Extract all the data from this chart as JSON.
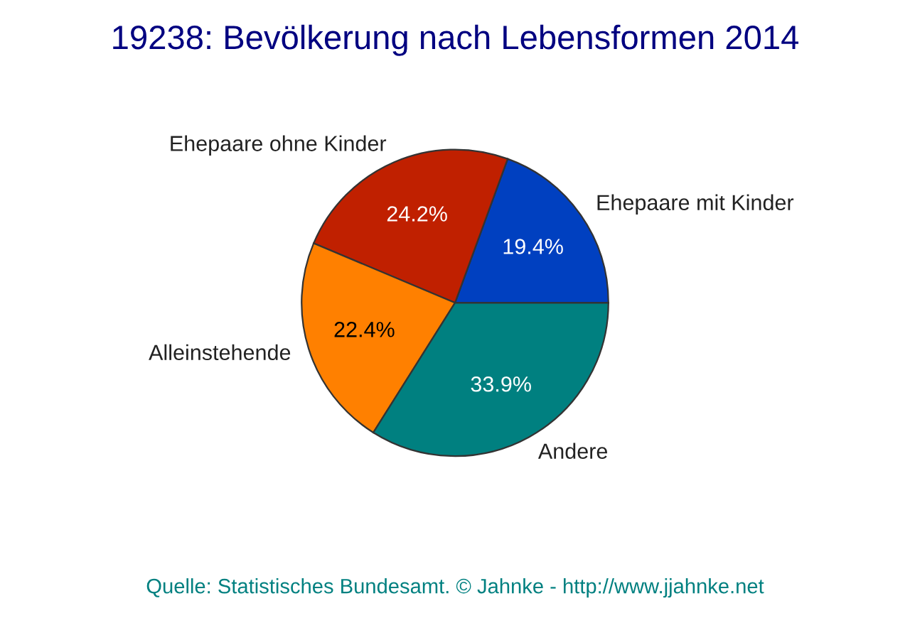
{
  "chart_data": {
    "type": "pie",
    "title": "19238: Bevölkerung nach Lebensformen 2014",
    "categories": [
      "Ehepaare mit Kinder",
      "Ehepaare ohne Kinder",
      "Alleinstehende",
      "Andere"
    ],
    "values": [
      19.4,
      24.2,
      22.4,
      33.9
    ],
    "value_labels": [
      "19.4%",
      "24.2%",
      "22.4%",
      "33.9%"
    ],
    "colors": [
      "#0040c0",
      "#c02000",
      "#ff8000",
      "#008080"
    ],
    "annotations": [
      "Quelle: Statistisches Bundesamt. © Jahnke - http://www.jjahnke.net"
    ]
  }
}
